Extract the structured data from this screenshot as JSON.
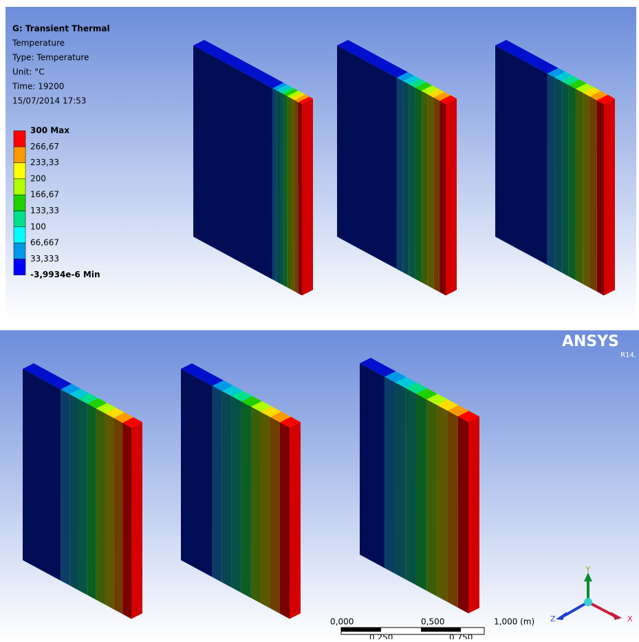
{
  "header": {
    "title": "G: Transient Thermal",
    "lines": [
      "Temperature",
      "Type: Temperature",
      "Unit: °C",
      "Time: 19200",
      "15/07/2014 17:53"
    ]
  },
  "legend": {
    "labels": [
      "300 Max",
      "266,67",
      "233,33",
      "200",
      "166,67",
      "133,33",
      "100",
      "66,667",
      "33,333",
      "-3,9934e-6 Min"
    ],
    "colors": [
      "#ff0000",
      "#ff9900",
      "#ffff00",
      "#b0ff00",
      "#20d000",
      "#00e08a",
      "#00ffff",
      "#0099e8",
      "#0000ff"
    ]
  },
  "scale": {
    "labels": [
      "0,000",
      "0,500",
      "1,000 (m)"
    ],
    "sublabels": [
      "0,250",
      "0,750"
    ]
  },
  "triad": {
    "y": "Y",
    "z": "Z",
    "x": "X"
  },
  "brand": {
    "name": "ANSYS",
    "version": "R14."
  }
}
